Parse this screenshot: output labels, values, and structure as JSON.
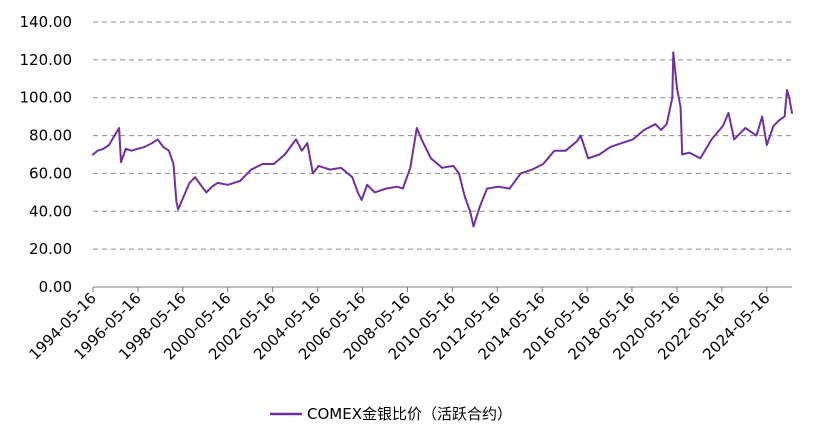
{
  "chart_data": {
    "type": "line",
    "title": "",
    "xlabel": "",
    "ylabel": "",
    "ylim": [
      0,
      140
    ],
    "y_ticks": [
      "0.00",
      "20.00",
      "40.00",
      "60.00",
      "80.00",
      "100.00",
      "120.00",
      "140.00"
    ],
    "x_tick_labels": [
      "1994-05-16",
      "1996-05-16",
      "1998-05-16",
      "2000-05-16",
      "2002-05-16",
      "2004-05-16",
      "2006-05-16",
      "2008-05-16",
      "2010-05-16",
      "2012-05-16",
      "2014-05-16",
      "2016-05-16",
      "2018-05-16",
      "2020-05-16",
      "2022-05-16",
      "2024-05-16"
    ],
    "xlim": [
      "1994-05-16",
      "2025-06-30"
    ],
    "grid": "horizontal dashed",
    "legend_position": "bottom",
    "series": [
      {
        "name": "COMEX金银比价（活跃合约）",
        "color": "#7030A0",
        "points": [
          [
            "1994-05-16",
            70
          ],
          [
            "1994-08-01",
            72
          ],
          [
            "1994-11-01",
            73
          ],
          [
            "1995-02-01",
            75
          ],
          [
            "1995-05-01",
            80
          ],
          [
            "1995-07-15",
            84
          ],
          [
            "1995-08-15",
            66
          ],
          [
            "1995-11-01",
            73
          ],
          [
            "1996-02-01",
            72
          ],
          [
            "1996-05-16",
            73
          ],
          [
            "1996-09-01",
            74
          ],
          [
            "1997-01-01",
            76
          ],
          [
            "1997-04-01",
            78
          ],
          [
            "1997-07-01",
            74
          ],
          [
            "1997-10-01",
            72
          ],
          [
            "1997-12-15",
            65
          ],
          [
            "1998-02-01",
            45
          ],
          [
            "1998-03-01",
            41
          ],
          [
            "1998-06-01",
            48
          ],
          [
            "1998-09-01",
            55
          ],
          [
            "1998-12-01",
            58
          ],
          [
            "1999-03-01",
            54
          ],
          [
            "1999-06-01",
            50
          ],
          [
            "1999-09-01",
            53
          ],
          [
            "1999-12-01",
            55
          ],
          [
            "2000-05-16",
            54
          ],
          [
            "2000-12-01",
            56
          ],
          [
            "2001-06-01",
            62
          ],
          [
            "2001-12-01",
            65
          ],
          [
            "2002-06-01",
            65
          ],
          [
            "2002-12-01",
            70
          ],
          [
            "2003-03-01",
            74
          ],
          [
            "2003-06-01",
            78
          ],
          [
            "2003-09-01",
            72
          ],
          [
            "2003-12-01",
            76
          ],
          [
            "2004-03-01",
            60
          ],
          [
            "2004-06-01",
            64
          ],
          [
            "2004-12-01",
            62
          ],
          [
            "2005-06-01",
            63
          ],
          [
            "2005-12-01",
            58
          ],
          [
            "2006-03-01",
            50
          ],
          [
            "2006-05-01",
            46
          ],
          [
            "2006-08-01",
            54
          ],
          [
            "2006-12-01",
            50
          ],
          [
            "2007-06-01",
            52
          ],
          [
            "2007-12-01",
            53
          ],
          [
            "2008-03-01",
            52
          ],
          [
            "2008-07-01",
            63
          ],
          [
            "2008-10-15",
            84
          ],
          [
            "2009-01-01",
            78
          ],
          [
            "2009-06-01",
            68
          ],
          [
            "2009-12-01",
            63
          ],
          [
            "2010-06-01",
            64
          ],
          [
            "2010-09-01",
            60
          ],
          [
            "2010-12-01",
            48
          ],
          [
            "2011-03-01",
            40
          ],
          [
            "2011-04-25",
            32
          ],
          [
            "2011-08-01",
            42
          ],
          [
            "2011-12-01",
            52
          ],
          [
            "2012-06-01",
            53
          ],
          [
            "2012-12-01",
            52
          ],
          [
            "2013-06-01",
            60
          ],
          [
            "2013-12-01",
            62
          ],
          [
            "2014-06-01",
            65
          ],
          [
            "2014-12-01",
            72
          ],
          [
            "2015-06-01",
            72
          ],
          [
            "2015-12-01",
            77
          ],
          [
            "2016-02-01",
            80
          ],
          [
            "2016-06-01",
            68
          ],
          [
            "2016-12-01",
            70
          ],
          [
            "2017-06-01",
            74
          ],
          [
            "2017-12-01",
            76
          ],
          [
            "2018-06-01",
            78
          ],
          [
            "2018-12-01",
            83
          ],
          [
            "2019-06-01",
            86
          ],
          [
            "2019-09-01",
            83
          ],
          [
            "2019-12-01",
            86
          ],
          [
            "2020-03-01",
            100
          ],
          [
            "2020-03-18",
            124
          ],
          [
            "2020-05-16",
            105
          ],
          [
            "2020-07-15",
            95
          ],
          [
            "2020-08-10",
            70
          ],
          [
            "2020-12-01",
            71
          ],
          [
            "2021-06-01",
            68
          ],
          [
            "2021-12-01",
            78
          ],
          [
            "2022-06-01",
            85
          ],
          [
            "2022-09-01",
            92
          ],
          [
            "2022-12-01",
            78
          ],
          [
            "2023-06-01",
            84
          ],
          [
            "2023-12-01",
            80
          ],
          [
            "2024-03-01",
            90
          ],
          [
            "2024-05-16",
            75
          ],
          [
            "2024-09-01",
            85
          ],
          [
            "2024-12-01",
            88
          ],
          [
            "2025-03-01",
            90
          ],
          [
            "2025-04-10",
            104
          ],
          [
            "2025-05-15",
            100
          ],
          [
            "2025-06-30",
            92
          ]
        ]
      }
    ]
  }
}
